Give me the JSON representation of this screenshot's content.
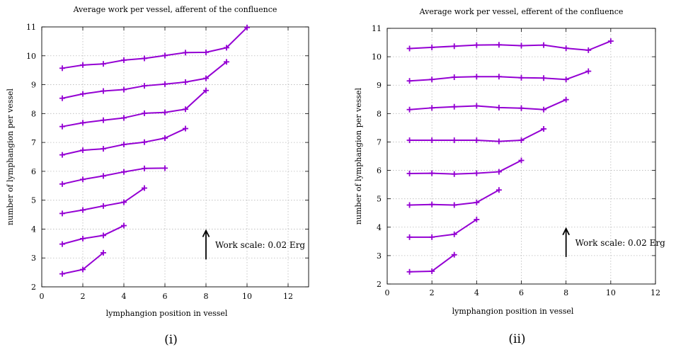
{
  "figure": {
    "accent_color": "#9400d3"
  },
  "chart_data": [
    {
      "type": "line",
      "title": "Average work per vessel, afferent of the confluence",
      "xlabel": "lymphangion position in vessel",
      "ylabel": "number of lymphangion per vessel",
      "caption": "(i)",
      "xlim": [
        0,
        13
      ],
      "ylim": [
        2,
        11
      ],
      "xticks": [
        0,
        2,
        4,
        6,
        8,
        10,
        12
      ],
      "yticks": [
        2,
        3,
        4,
        5,
        6,
        7,
        8,
        9,
        10,
        11
      ],
      "grid": true,
      "annotation": {
        "text": "Work scale: 0.02 Erg",
        "arrow_x": 8,
        "arrow_from": 2.95,
        "arrow_to": 3.95
      },
      "series": [
        {
          "x": [
            1,
            2,
            3
          ],
          "y": [
            2.45,
            2.6,
            3.18
          ]
        },
        {
          "x": [
            1,
            2,
            3,
            4
          ],
          "y": [
            3.48,
            3.67,
            3.78,
            4.12
          ]
        },
        {
          "x": [
            1,
            2,
            3,
            4,
            5
          ],
          "y": [
            4.54,
            4.66,
            4.8,
            4.93,
            5.42
          ]
        },
        {
          "x": [
            1,
            2,
            3,
            4,
            5,
            6
          ],
          "y": [
            5.56,
            5.72,
            5.84,
            5.98,
            6.1,
            6.11
          ]
        },
        {
          "x": [
            1,
            2,
            3,
            4,
            5,
            6,
            7
          ],
          "y": [
            6.57,
            6.73,
            6.78,
            6.93,
            7.01,
            7.15,
            7.48
          ]
        },
        {
          "x": [
            1,
            2,
            3,
            4,
            5,
            6,
            7,
            8
          ],
          "y": [
            7.55,
            7.68,
            7.77,
            7.85,
            8.01,
            8.04,
            8.15,
            8.8
          ]
        },
        {
          "x": [
            1,
            2,
            3,
            4,
            5,
            6,
            7,
            8,
            9
          ],
          "y": [
            8.53,
            8.68,
            8.78,
            8.83,
            8.96,
            9.02,
            9.09,
            9.22,
            9.79
          ]
        },
        {
          "x": [
            1,
            2,
            3,
            4,
            5,
            6,
            7,
            8,
            9,
            10
          ],
          "y": [
            9.57,
            9.68,
            9.72,
            9.85,
            9.91,
            10.01,
            10.11,
            10.12,
            10.28,
            10.98
          ]
        }
      ]
    },
    {
      "type": "line",
      "title": "Average work per vessel, efferent of the confluence",
      "xlabel": "lymphangion position in vessel",
      "ylabel": "number of lymphangion per vessel",
      "caption": "(ii)",
      "xlim": [
        0,
        12
      ],
      "ylim": [
        2,
        11
      ],
      "xticks": [
        0,
        2,
        4,
        6,
        8,
        10,
        12
      ],
      "yticks": [
        2,
        3,
        4,
        5,
        6,
        7,
        8,
        9,
        10,
        11
      ],
      "grid": true,
      "annotation": {
        "text": "Work scale: 0.02 Erg",
        "arrow_x": 8,
        "arrow_from": 2.95,
        "arrow_to": 3.95
      },
      "series": [
        {
          "x": [
            1,
            2,
            3
          ],
          "y": [
            2.43,
            2.45,
            3.03
          ]
        },
        {
          "x": [
            1,
            2,
            3,
            4
          ],
          "y": [
            3.65,
            3.65,
            3.75,
            4.27
          ]
        },
        {
          "x": [
            1,
            2,
            3,
            4,
            5
          ],
          "y": [
            4.78,
            4.8,
            4.78,
            4.87,
            5.31
          ]
        },
        {
          "x": [
            1,
            2,
            3,
            4,
            5,
            6
          ],
          "y": [
            5.89,
            5.9,
            5.87,
            5.9,
            5.95,
            6.35
          ]
        },
        {
          "x": [
            1,
            2,
            3,
            4,
            5,
            6,
            7
          ],
          "y": [
            7.06,
            7.06,
            7.06,
            7.06,
            7.02,
            7.06,
            7.46
          ]
        },
        {
          "x": [
            1,
            2,
            3,
            4,
            5,
            6,
            7,
            8
          ],
          "y": [
            8.14,
            8.2,
            8.24,
            8.27,
            8.21,
            8.19,
            8.14,
            8.49
          ]
        },
        {
          "x": [
            1,
            2,
            3,
            4,
            5,
            6,
            7,
            8,
            9
          ],
          "y": [
            9.15,
            9.2,
            9.28,
            9.3,
            9.3,
            9.26,
            9.25,
            9.2,
            9.49
          ]
        },
        {
          "x": [
            1,
            2,
            3,
            4,
            5,
            6,
            7,
            8,
            9,
            10
          ],
          "y": [
            10.29,
            10.33,
            10.37,
            10.41,
            10.42,
            10.39,
            10.41,
            10.3,
            10.23,
            10.55
          ]
        }
      ]
    }
  ]
}
